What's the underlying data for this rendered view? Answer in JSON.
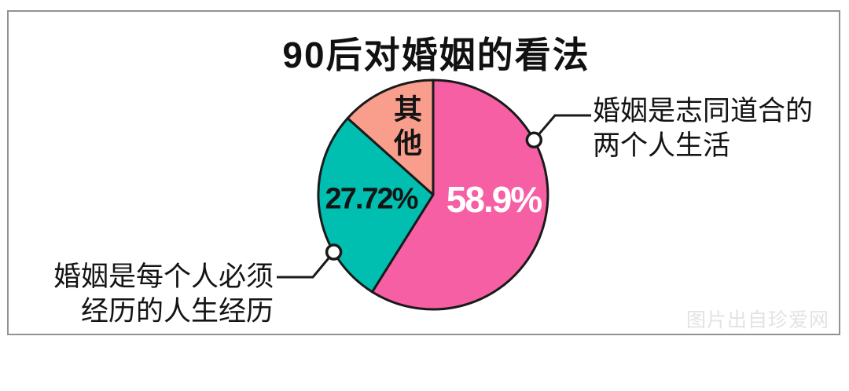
{
  "title": "90后对婚姻的看法",
  "chart_data": {
    "type": "pie",
    "title": "90后对婚姻的看法",
    "direction": "clockwise",
    "start_angle_deg": 0,
    "unit": "%",
    "slices": [
      {
        "label": "婚姻是志同道合的两个人生活",
        "value": 58.9,
        "display_value": "58.9%",
        "color": "#F75FA4",
        "value_label_color": "#ffffff"
      },
      {
        "label": "婚姻是每个人必须经历的人生经历",
        "value": 27.72,
        "display_value": "27.72%",
        "color": "#00BFB0",
        "value_label_color": "#141414"
      },
      {
        "label": "其他",
        "value": 13.38,
        "display_value": "其他",
        "color": "#F99E8C",
        "value_label_color": "#141414"
      }
    ],
    "outline_color": "#1a1a1a",
    "legend_position": "callouts"
  },
  "callouts": {
    "right": {
      "line1": "婚姻是志同道合的",
      "line2": "两个人生活",
      "target_slice": "婚姻是志同道合的两个人生活"
    },
    "left": {
      "line1": "婚姻是每个人必须",
      "line2": "经历的人生经历",
      "target_slice": "婚姻是每个人必须经历的人生经历"
    }
  },
  "watermark": "图片出自珍爱网",
  "colors": {
    "background": "#ffffff",
    "frame_border": "#929292",
    "outline": "#1a1a1a",
    "text": "#141414",
    "watermark": "#e3e3e3"
  }
}
